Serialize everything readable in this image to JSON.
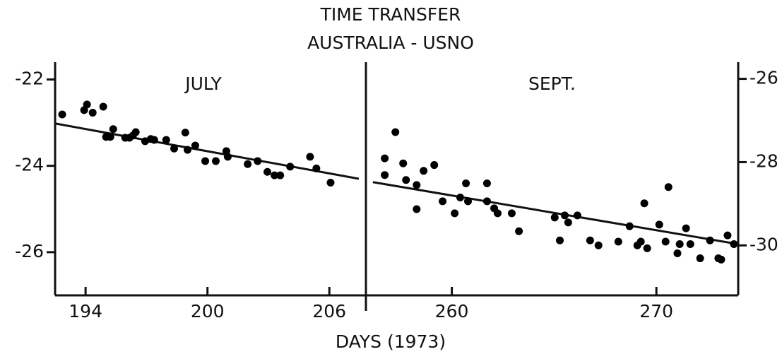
{
  "title": "TIME TRANSFER",
  "subtitle": "AUSTRALIA - USNO",
  "xlabel": "DAYS (1973)",
  "chart_data": [
    {
      "type": "scatter",
      "label": "JULY",
      "color": "#000000",
      "axis": "y",
      "xlim": [
        192.5,
        207.8
      ],
      "ylim": [
        -27,
        -21.6
      ],
      "xticks": [
        194,
        200,
        206
      ],
      "yticks": [
        -22,
        -24,
        -26
      ],
      "x": [
        192.85,
        193.93,
        194.07,
        194.35,
        194.87,
        195.01,
        195.22,
        195.36,
        195.95,
        196.16,
        196.33,
        196.47,
        196.93,
        197.21,
        197.38,
        197.97,
        198.36,
        198.91,
        199.02,
        199.4,
        199.89,
        200.41,
        200.93,
        201.0,
        201.98,
        202.47,
        202.95,
        203.3,
        203.58,
        204.07,
        205.05,
        205.36,
        206.06
      ],
      "values": [
        -22.81,
        -22.71,
        -22.58,
        -22.77,
        -22.63,
        -23.33,
        -23.33,
        -23.15,
        -23.35,
        -23.35,
        -23.3,
        -23.22,
        -23.43,
        -23.38,
        -23.4,
        -23.4,
        -23.6,
        -23.23,
        -23.63,
        -23.53,
        -23.89,
        -23.89,
        -23.66,
        -23.79,
        -23.96,
        -23.89,
        -24.14,
        -24.22,
        -24.22,
        -24.02,
        -23.79,
        -24.06,
        -24.39
      ],
      "fit": {
        "x": [
          192.5,
          207.45
        ],
        "values": [
          -23.02,
          -24.3
        ]
      }
    },
    {
      "type": "scatter",
      "label": "SEPT.",
      "color": "#000000",
      "axis": "y2",
      "xlim": [
        255.8,
        274
      ],
      "y2lim": [
        -31.2,
        -25.6
      ],
      "xticks": [
        260,
        270
      ],
      "y2ticks": [
        -26,
        -28,
        -30
      ],
      "x": [
        256.72,
        256.72,
        257.24,
        257.62,
        257.76,
        258.28,
        258.28,
        258.62,
        259.14,
        259.55,
        260.14,
        260.41,
        260.69,
        260.79,
        261.72,
        261.72,
        262.07,
        262.24,
        262.93,
        263.28,
        265.03,
        265.28,
        265.52,
        265.69,
        266.14,
        266.76,
        267.17,
        268.14,
        268.69,
        269.07,
        269.24,
        269.41,
        269.55,
        270.14,
        270.45,
        270.59,
        271.03,
        271.14,
        271.45,
        271.66,
        272.14,
        272.62,
        273.03,
        273.17,
        273.48,
        273.79
      ],
      "values": [
        -27.91,
        -28.31,
        -27.28,
        -28.03,
        -28.43,
        -28.55,
        -29.13,
        -28.21,
        -28.07,
        -28.94,
        -29.23,
        -28.85,
        -28.51,
        -28.94,
        -28.51,
        -28.94,
        -29.11,
        -29.23,
        -29.23,
        -29.66,
        -29.33,
        -29.88,
        -29.28,
        -29.45,
        -29.28,
        -29.88,
        -30.0,
        -29.91,
        -29.54,
        -30.0,
        -29.91,
        -28.99,
        -30.07,
        -29.5,
        -29.91,
        -28.6,
        -30.19,
        -29.97,
        -29.59,
        -29.97,
        -30.31,
        -29.88,
        -30.31,
        -30.34,
        -29.76,
        -29.97
      ],
      "fit": {
        "x": [
          256.14,
          274
        ],
        "values": [
          -28.48,
          -29.97
        ]
      }
    }
  ]
}
